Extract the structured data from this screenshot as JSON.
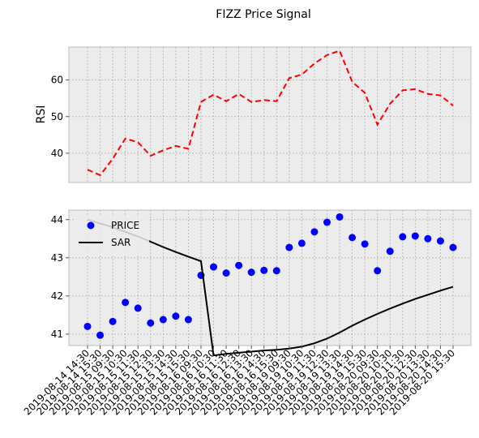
{
  "chart_data": {
    "title": "FIZZ Price Signal",
    "x_labels": [
      "2019-08-14 14:30",
      "2019-08-14 15:30",
      "2019-08-15 09:30",
      "2019-08-15 10:30",
      "2019-08-15 11:30",
      "2019-08-15 12:30",
      "2019-08-15 13:30",
      "2019-08-15 14:30",
      "2019-08-15 15:30",
      "2019-08-16 09:30",
      "2019-08-16 10:30",
      "2019-08-16 11:30",
      "2019-08-16 12:30",
      "2019-08-16 13:30",
      "2019-08-16 14:30",
      "2019-08-16 15:30",
      "2019-08-19 09:30",
      "2019-08-19 10:30",
      "2019-08-19 11:30",
      "2019-08-19 12:30",
      "2019-08-19 13:30",
      "2019-08-19 14:30",
      "2019-08-19 15:30",
      "2019-08-20 09:30",
      "2019-08-20 10:30",
      "2019-08-20 11:30",
      "2019-08-20 12:30",
      "2019-08-20 13:30",
      "2019-08-20 14:30",
      "2019-08-20 15:30"
    ],
    "panels": [
      {
        "type": "line",
        "ylabel": "RSI",
        "ylim": [
          32,
          69
        ],
        "yticks": [
          40,
          50,
          60
        ],
        "grid": true,
        "series": [
          {
            "color": "#ff0000",
            "style": "dashed",
            "values": [
              35.5,
              34.0,
              38.5,
              44.0,
              43.0,
              39.3,
              40.8,
              42.0,
              41.2,
              54.0,
              56.0,
              54.2,
              56.2,
              54.0,
              54.5,
              54.2,
              60.5,
              61.5,
              64.5,
              66.8,
              68.0,
              59.5,
              56.5,
              47.8,
              53.5,
              57.2,
              57.5,
              56.2,
              55.8,
              53.0
            ]
          }
        ]
      },
      {
        "type": "line",
        "ylabel": "",
        "ylim": [
          40.7,
          44.25
        ],
        "yticks": [
          41,
          42,
          43,
          44
        ],
        "grid": true,
        "legend": "top-left",
        "series": [
          {
            "name": "PRICE",
            "color": "#0000ff",
            "style": "markers",
            "values": [
              41.2,
              40.97,
              41.33,
              41.83,
              41.68,
              41.29,
              41.38,
              41.47,
              41.38,
              42.54,
              42.76,
              42.6,
              42.8,
              42.62,
              42.67,
              42.66,
              43.27,
              43.38,
              43.68,
              43.93,
              44.07,
              43.53,
              43.36,
              42.66,
              43.17,
              43.55,
              43.57,
              43.5,
              43.44,
              43.27
            ]
          },
          {
            "name": "SAR",
            "color": "#000000",
            "style": "solid",
            "values": [
              44.0,
              43.9,
              43.8,
              43.68,
              43.56,
              43.42,
              43.28,
              43.15,
              43.03,
              42.91,
              40.44,
              40.48,
              40.51,
              40.54,
              40.57,
              40.59,
              40.62,
              40.67,
              40.76,
              40.88,
              41.04,
              41.22,
              41.38,
              41.53,
              41.67,
              41.8,
              41.92,
              42.03,
              42.14,
              42.24
            ]
          }
        ]
      }
    ]
  }
}
